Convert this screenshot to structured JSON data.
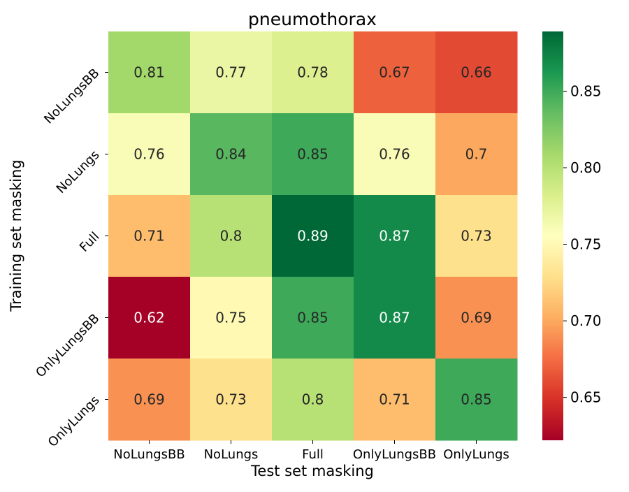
{
  "chart_data": {
    "type": "heatmap",
    "title": "pneumothorax",
    "xlabel": "Test set masking",
    "ylabel": "Training set masking",
    "x_categories": [
      "NoLungsBB",
      "NoLungs",
      "Full",
      "OnlyLungsBB",
      "OnlyLungs"
    ],
    "y_categories": [
      "NoLungsBB",
      "NoLungs",
      "Full",
      "OnlyLungsBB",
      "OnlyLungs"
    ],
    "cell_labels": [
      [
        "0.81",
        "0.77",
        "0.78",
        "0.67",
        "0.66"
      ],
      [
        "0.76",
        "0.84",
        "0.85",
        "0.76",
        "0.7"
      ],
      [
        "0.71",
        "0.8",
        "0.89",
        "0.87",
        "0.73"
      ],
      [
        "0.62",
        "0.75",
        "0.85",
        "0.87",
        "0.69"
      ],
      [
        "0.69",
        "0.73",
        "0.8",
        "0.71",
        "0.85"
      ]
    ],
    "values": [
      [
        0.81,
        0.77,
        0.78,
        0.67,
        0.66
      ],
      [
        0.76,
        0.84,
        0.85,
        0.76,
        0.7
      ],
      [
        0.71,
        0.8,
        0.89,
        0.87,
        0.73
      ],
      [
        0.62,
        0.75,
        0.85,
        0.87,
        0.69
      ],
      [
        0.69,
        0.73,
        0.8,
        0.71,
        0.85
      ]
    ],
    "colormap": "RdYlGn",
    "colorbar": {
      "vmin": 0.622,
      "vmax": 0.889,
      "ticks": [
        0.65,
        0.7,
        0.75,
        0.8,
        0.85
      ],
      "tick_labels": [
        "0.65",
        "0.70",
        "0.75",
        "0.80",
        "0.85"
      ]
    },
    "colorbar_placement": "right",
    "grid": false,
    "annotation_colors": {
      "dark": "#262626",
      "light": "#ffffff"
    }
  }
}
